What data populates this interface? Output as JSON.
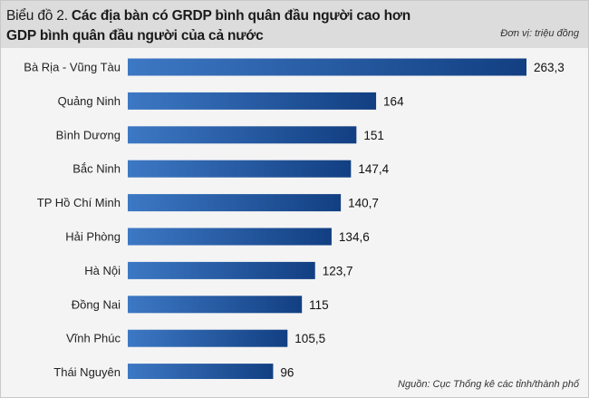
{
  "chart_data": {
    "type": "bar",
    "orientation": "horizontal",
    "title_prefix": "Biểu đồ 2.",
    "title": "Các địa bàn có GRDP bình quân đầu người cao hơn GDP bình quân đầu người của cả nước",
    "title_line1": "Các địa bàn có GRDP bình quân đầu người cao hơn",
    "title_line2": "GDP bình quân đầu người của cả nước",
    "unit": "Đơn vị: triệu đồng",
    "source": "Nguồn: Cục Thống kê các tỉnh/thành phố",
    "categories": [
      "Bà Rịa - Vũng Tàu",
      "Quảng Ninh",
      "Bình Dương",
      "Bắc Ninh",
      "TP Hồ Chí Minh",
      "Hải Phòng",
      "Hà Nội",
      "Đồng Nai",
      "Vĩnh Phúc",
      "Thái Nguyên"
    ],
    "values": [
      263.3,
      164,
      151,
      147.4,
      140.7,
      134.6,
      123.7,
      115,
      105.5,
      96
    ],
    "value_labels": [
      "263,3",
      "164",
      "151",
      "147,4",
      "140,7",
      "134,6",
      "123,7",
      "115",
      "105,5",
      "96"
    ],
    "xlim": [
      0,
      263.3
    ],
    "colors": {
      "bar_start": "#3d78c4",
      "bar_end": "#123f82",
      "header_bg": "#dcdcdc"
    }
  }
}
